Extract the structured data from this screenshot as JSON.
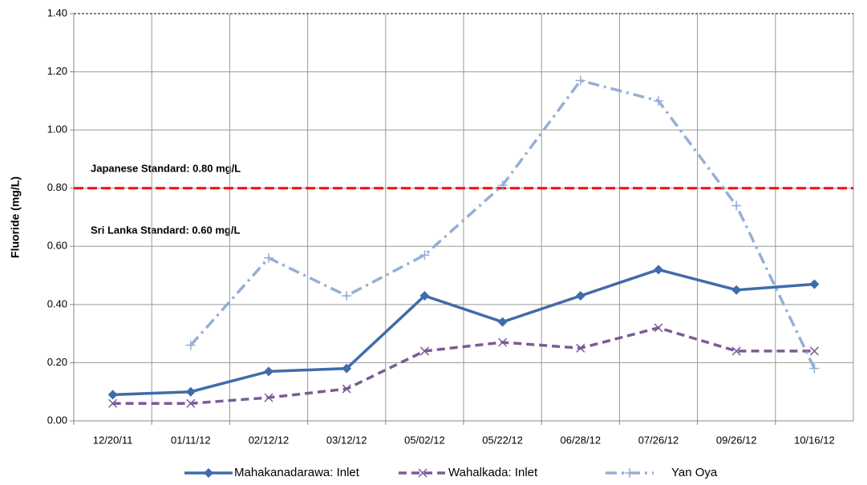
{
  "chart_data": {
    "type": "line",
    "y_label": "Fluoride (mg/L)",
    "categories": [
      "12/20/11",
      "01/11/12",
      "02/12/12",
      "03/12/12",
      "05/02/12",
      "05/22/12",
      "06/28/12",
      "07/26/12",
      "09/26/12",
      "10/16/12"
    ],
    "series": [
      {
        "name": "Mahakanadarawa: Inlet",
        "color": "#3f6cab",
        "dash": "solid",
        "marker": "diamond",
        "values": [
          0.09,
          0.1,
          0.17,
          0.18,
          0.43,
          0.34,
          0.43,
          0.52,
          0.45,
          0.47
        ]
      },
      {
        "name": "Wahalkada: Inlet",
        "color": "#7b5b96",
        "dash": "dash",
        "marker": "x",
        "values": [
          0.06,
          0.06,
          0.08,
          0.11,
          0.24,
          0.27,
          0.25,
          0.32,
          0.24,
          0.24
        ]
      },
      {
        "name": "Yan Oya",
        "color": "#95afd6",
        "dash": "dashdot",
        "marker": "plus",
        "values": [
          null,
          0.26,
          0.56,
          0.43,
          0.57,
          0.81,
          1.17,
          1.1,
          0.74,
          0.18
        ]
      }
    ],
    "reference_lines": [
      {
        "value": 0.8,
        "color": "#ff0000"
      }
    ],
    "annotations": [
      "Japanese Standard: 0.80 mg/L",
      "Sri Lanka Standard: 0.60 mg/L"
    ],
    "ylim": [
      0,
      1.4
    ],
    "yticks": [
      {
        "value": 0,
        "label": "0.00"
      },
      {
        "value": 0.2,
        "label": "0.20"
      },
      {
        "value": 0.4,
        "label": "0.40"
      },
      {
        "value": 0.6,
        "label": "0.60"
      },
      {
        "value": 0.8,
        "label": "0.80"
      },
      {
        "value": 1.0,
        "label": "1.00"
      },
      {
        "value": 1.2,
        "label": "1.20"
      },
      {
        "value": 1.4,
        "label": "1.40"
      }
    ],
    "grid": true,
    "legend": "bottom"
  }
}
